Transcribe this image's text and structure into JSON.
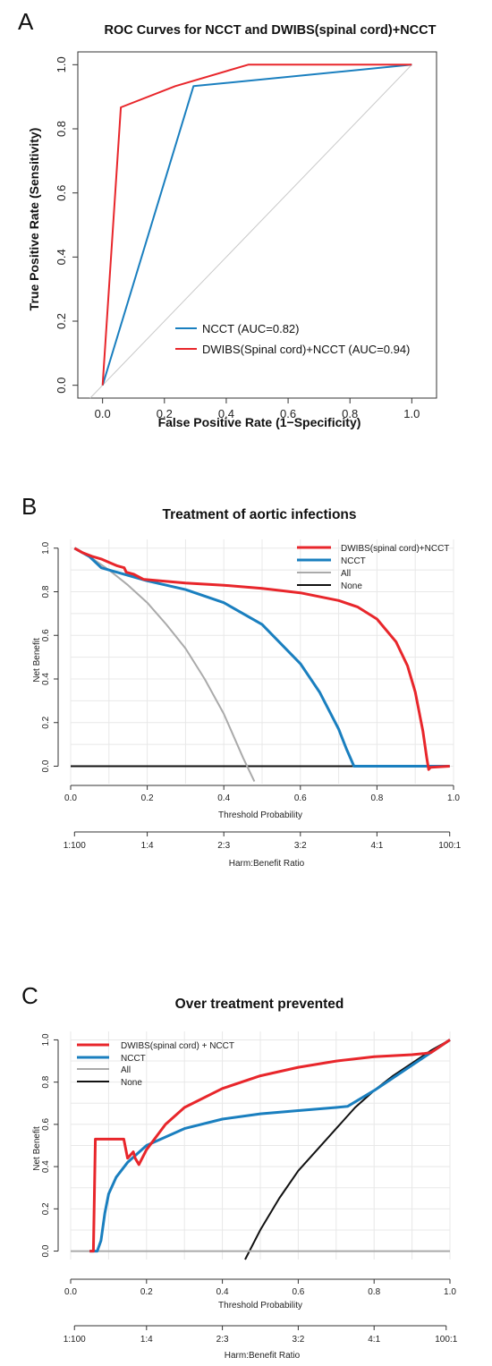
{
  "colors": {
    "red": "#e8262b",
    "blue": "#1a7fbf",
    "gray": "#aaaaaa",
    "black": "#111111",
    "grid": "#e8e8e8",
    "diag": "#c8c8c8"
  },
  "panels": {
    "a": {
      "letter": "A"
    },
    "b": {
      "letter": "B"
    },
    "c": {
      "letter": "C"
    }
  },
  "chart_data": [
    {
      "id": "roc",
      "type": "line",
      "title": "ROC Curves for NCCT and DWIBS(spinal cord)+NCCT",
      "xlabel": "False Positive Rate (1−Specificity)",
      "ylabel": "True Positive Rate (Sensitivity)",
      "xlim": [
        -0.08,
        1.08
      ],
      "ylim": [
        -0.04,
        1.04
      ],
      "x_ticks": [
        "0.0",
        "0.2",
        "0.4",
        "0.6",
        "0.8",
        "1.0"
      ],
      "y_ticks": [
        "0.0",
        "0.2",
        "0.4",
        "0.6",
        "0.8",
        "1.0"
      ],
      "grid": false,
      "legend_position": "bottom-right",
      "series": [
        {
          "name": "NCCT (AUC=0.82)",
          "color": "#1a7fbf",
          "x": [
            0,
            0.294,
            1
          ],
          "y": [
            0,
            0.933,
            1
          ]
        },
        {
          "name": "DWIBS(Spinal cord)+NCCT (AUC=0.94)",
          "color": "#e8262b",
          "x": [
            0,
            0.059,
            0.235,
            0.471,
            1
          ],
          "y": [
            0,
            0.867,
            0.933,
            1,
            1
          ]
        }
      ],
      "reference": {
        "x": [
          -0.04,
          1
        ],
        "y": [
          -0.04,
          1
        ]
      }
    },
    {
      "id": "dca-b",
      "type": "line",
      "title": "Treatment of aortic infections",
      "xlabel": "Threshold Probability",
      "ylabel": "Net Benefit",
      "xlabel2": "Harm:Benefit Ratio",
      "xlim": [
        0,
        1
      ],
      "ylim": [
        -0.08,
        1.04
      ],
      "x_ticks": [
        "0.0",
        "0.2",
        "0.4",
        "0.6",
        "0.8",
        "1.0"
      ],
      "y_ticks": [
        "0.0",
        "0.2",
        "0.4",
        "0.6",
        "0.8",
        "1.0"
      ],
      "ratio_ticks": [
        "1:100",
        "1:4",
        "2:3",
        "3:2",
        "4:1",
        "100:1"
      ],
      "grid": true,
      "legend_position": "top-right",
      "series": [
        {
          "name": "DWIBS(spinal cord)+NCCT",
          "color": "#e8262b",
          "x": [
            0.01,
            0.03,
            0.055,
            0.08,
            0.1,
            0.12,
            0.14,
            0.145,
            0.165,
            0.19,
            0.3,
            0.4,
            0.5,
            0.6,
            0.7,
            0.75,
            0.8,
            0.85,
            0.88,
            0.9,
            0.92,
            0.93,
            0.935,
            0.94,
            0.99
          ],
          "y": [
            1.0,
            0.98,
            0.963,
            0.95,
            0.935,
            0.92,
            0.91,
            0.89,
            0.88,
            0.857,
            0.84,
            0.83,
            0.815,
            0.795,
            0.76,
            0.73,
            0.675,
            0.57,
            0.46,
            0.34,
            0.16,
            0.04,
            -0.015,
            -0.005,
            0.0
          ]
        },
        {
          "name": "NCCT",
          "color": "#1a7fbf",
          "x": [
            0.01,
            0.05,
            0.08,
            0.12,
            0.16,
            0.2,
            0.3,
            0.4,
            0.5,
            0.6,
            0.65,
            0.7,
            0.72,
            0.74,
            0.75,
            0.99
          ],
          "y": [
            1.0,
            0.96,
            0.91,
            0.89,
            0.87,
            0.85,
            0.81,
            0.75,
            0.65,
            0.47,
            0.34,
            0.17,
            0.08,
            0.0,
            0.0,
            0.0
          ]
        },
        {
          "name": "All",
          "color": "#aaaaaa",
          "x": [
            0.01,
            0.05,
            0.1,
            0.15,
            0.2,
            0.25,
            0.3,
            0.35,
            0.4,
            0.45,
            0.48
          ],
          "y": [
            1.0,
            0.96,
            0.9,
            0.83,
            0.75,
            0.65,
            0.54,
            0.4,
            0.24,
            0.04,
            -0.07
          ]
        },
        {
          "name": "None",
          "color": "#111111",
          "x": [
            0,
            0.99
          ],
          "y": [
            0,
            0
          ]
        }
      ]
    },
    {
      "id": "dca-c",
      "type": "line",
      "title": "Over treatment prevented",
      "xlabel": "Threshold Probability",
      "ylabel": "Net Benefit",
      "xlabel2": "Harm:Benefit Ratio",
      "xlim": [
        0,
        1
      ],
      "ylim": [
        -0.04,
        1.04
      ],
      "x_ticks": [
        "0.0",
        "0.2",
        "0.4",
        "0.6",
        "0.8",
        "1.0"
      ],
      "y_ticks": [
        "0.0",
        "0.2",
        "0.4",
        "0.6",
        "0.8",
        "1.0"
      ],
      "ratio_ticks": [
        "1:100",
        "1:4",
        "2:3",
        "3:2",
        "4:1",
        "100:1"
      ],
      "grid": true,
      "legend_position": "top-left",
      "series": [
        {
          "name": "DWIBS(spinal cord) + NCCT",
          "color": "#e8262b",
          "x": [
            0.05,
            0.06,
            0.065,
            0.14,
            0.15,
            0.165,
            0.17,
            0.18,
            0.2,
            0.25,
            0.3,
            0.4,
            0.5,
            0.6,
            0.7,
            0.8,
            0.9,
            0.93,
            0.95,
            1.0
          ],
          "y": [
            0.0,
            0.0,
            0.53,
            0.53,
            0.44,
            0.47,
            0.44,
            0.41,
            0.48,
            0.6,
            0.68,
            0.77,
            0.83,
            0.87,
            0.9,
            0.92,
            0.93,
            0.935,
            0.94,
            1.0
          ]
        },
        {
          "name": "NCCT",
          "color": "#1a7fbf",
          "x": [
            0.05,
            0.07,
            0.08,
            0.09,
            0.1,
            0.12,
            0.15,
            0.2,
            0.3,
            0.4,
            0.5,
            0.6,
            0.7,
            0.73,
            0.8,
            0.9,
            1.0
          ],
          "y": [
            0.0,
            0.0,
            0.05,
            0.18,
            0.27,
            0.35,
            0.42,
            0.5,
            0.58,
            0.625,
            0.65,
            0.665,
            0.68,
            0.685,
            0.76,
            0.88,
            1.0
          ]
        },
        {
          "name": "All",
          "color": "#aaaaaa",
          "x": [
            0.0,
            1.0
          ],
          "y": [
            0.0,
            0.0
          ]
        },
        {
          "name": "None",
          "color": "#111111",
          "x": [
            0.46,
            0.5,
            0.55,
            0.6,
            0.65,
            0.7,
            0.75,
            0.8,
            0.85,
            0.9,
            0.95,
            1.0
          ],
          "y": [
            -0.04,
            0.1,
            0.25,
            0.38,
            0.48,
            0.58,
            0.68,
            0.76,
            0.83,
            0.89,
            0.95,
            1.0
          ]
        }
      ]
    }
  ]
}
